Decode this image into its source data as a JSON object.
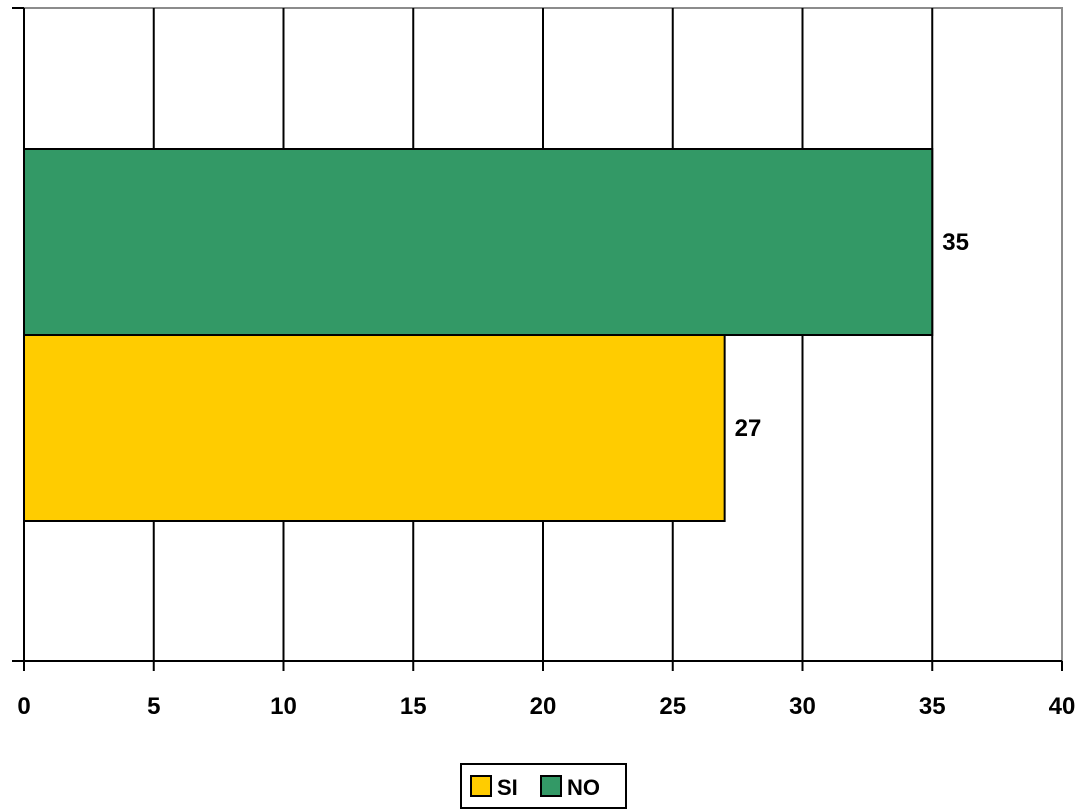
{
  "chart_data": {
    "type": "bar",
    "orientation": "horizontal",
    "title": "",
    "xlabel": "",
    "ylabel": "",
    "xlim": [
      0,
      40
    ],
    "x_ticks": [
      "0",
      "5",
      "10",
      "15",
      "20",
      "25",
      "30",
      "35",
      "40"
    ],
    "grid": true,
    "legend_position": "bottom",
    "series": [
      {
        "name": "SI",
        "value": 27,
        "value_label": "27",
        "color": "#FFCC00"
      },
      {
        "name": "NO",
        "value": 35,
        "value_label": "35",
        "color": "#339966"
      }
    ]
  }
}
